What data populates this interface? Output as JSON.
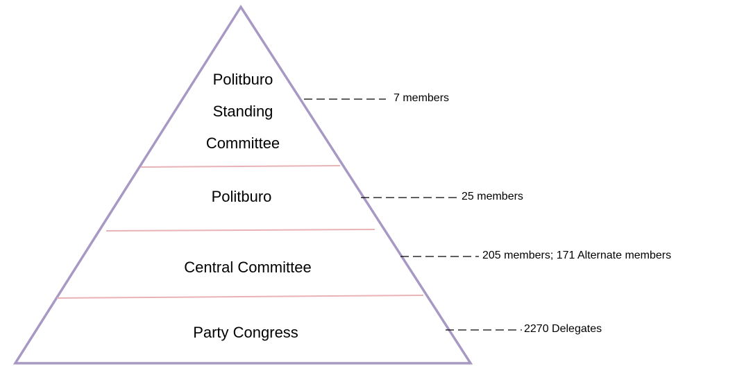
{
  "levels": [
    {
      "label_lines": [
        "Politburo",
        "Standing",
        "Committee"
      ],
      "annotation": "7 members"
    },
    {
      "label_lines": [
        "Politburo"
      ],
      "annotation": "25 members"
    },
    {
      "label_lines": [
        "Central Committee"
      ],
      "annotation": "205 members; 171 Alternate members"
    },
    {
      "label_lines": [
        "Party Congress"
      ],
      "annotation": "2270 Delegates"
    }
  ]
}
